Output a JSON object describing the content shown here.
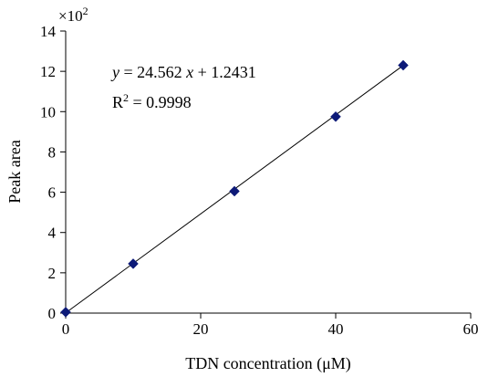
{
  "chart_data": {
    "type": "scatter",
    "xlabel": "TDN concentration (μM)",
    "ylabel": "Peak area",
    "y_multiplier": "×10",
    "y_multiplier_exp": "2",
    "xlim": [
      0,
      60
    ],
    "ylim": [
      0,
      14
    ],
    "x_ticks": [
      "0",
      "20",
      "40",
      "60"
    ],
    "y_ticks": [
      "0",
      "2",
      "4",
      "6",
      "8",
      "10",
      "12",
      "14"
    ],
    "grid": false,
    "legend": "none",
    "marker_color": "#0d1a78",
    "line_color": "#000000",
    "series": [
      {
        "x": [
          0,
          10,
          25,
          40,
          50
        ],
        "y": [
          0.05,
          2.45,
          6.05,
          9.75,
          12.3
        ]
      }
    ],
    "trendline": {
      "slope": 24.562,
      "intercept": 1.2431,
      "equation_prefix": "y",
      "equation_eq": " = 24.562 ",
      "equation_var": "x",
      "equation_rest": " + 1.2431",
      "r2_base": "R",
      "r2_exp": "2",
      "r2_value": " = 0.9998"
    }
  }
}
